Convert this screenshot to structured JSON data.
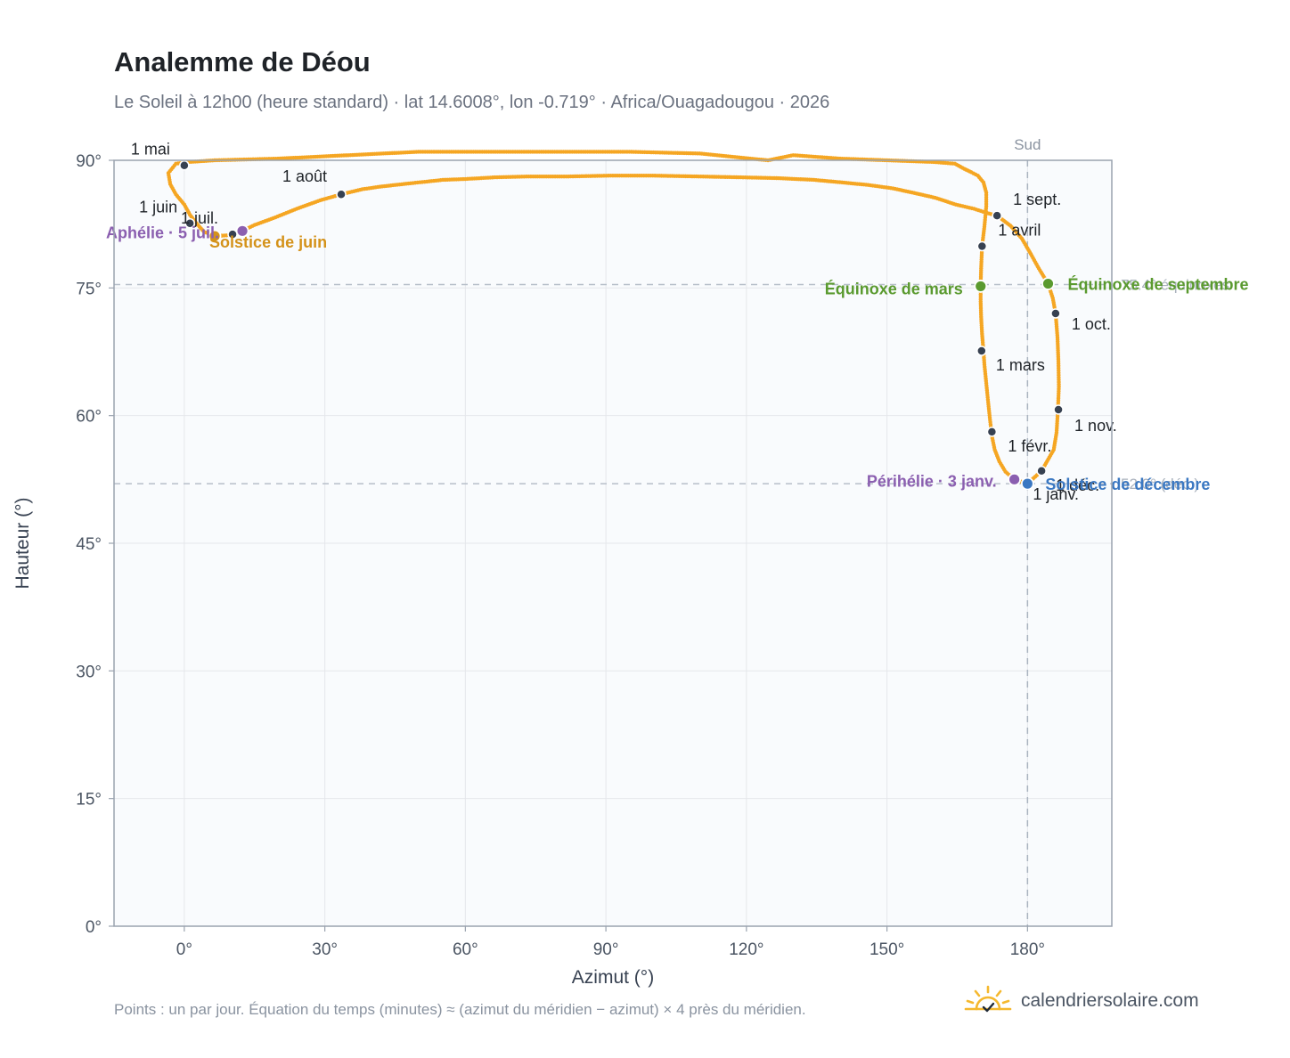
{
  "title": "Analemme de Déou",
  "subtitle": "Le Soleil à 12h00 (heure standard) · lat 14.6008°, lon -0.719° · Africa/Ouagadougou · 2026",
  "footnote": "Points : un par jour. Équation du temps (minutes) ≈ (azimut du méridien − azimut) × 4 près du méridien.",
  "brand": {
    "name": "calendriersolaire.com",
    "icon": "sun-check-icon"
  },
  "colors": {
    "curve": "#f5a623",
    "month_marker": "#374151",
    "solstice_june": "#d4921a",
    "solstice_december": "#3b78c2",
    "equinox": "#5a9a2f",
    "apsis": "#8b5fb0",
    "grid": "#e5e7eb",
    "frame": "#9aa3af",
    "plot_bg": "#f9fbfd"
  },
  "chart_data": {
    "type": "scatter",
    "xlabel": "Azimut (°)",
    "ylabel": "Hauteur (°)",
    "xlim": [
      -15,
      198
    ],
    "ylim": [
      0,
      90
    ],
    "x_ticks": [
      0,
      30,
      60,
      90,
      120,
      150,
      180
    ],
    "y_ticks": [
      0,
      15,
      30,
      45,
      60,
      75,
      90
    ],
    "x_tick_labels": [
      "0°",
      "30°",
      "60°",
      "90°",
      "120°",
      "150°",
      "180°"
    ],
    "y_tick_labels": [
      "0°",
      "15°",
      "30°",
      "45°",
      "60°",
      "75°",
      "90°"
    ],
    "grid": true,
    "south_line": {
      "x": 180,
      "label": "Sud"
    },
    "reference_lines_y": [
      75.4,
      52.0
    ],
    "reference_line_labels": [
      "75.4° équinoxes",
      "52.0° (déc.)"
    ],
    "series": [
      {
        "points": [
          [
            180.0,
            52.0
          ],
          [
            177.2,
            52.5
          ],
          [
            175.3,
            53.4
          ],
          [
            174.0,
            54.6
          ],
          [
            173.0,
            56.0
          ],
          [
            172.4,
            57.6
          ],
          [
            172.0,
            59.5
          ],
          [
            171.6,
            61.6
          ],
          [
            171.2,
            63.8
          ],
          [
            170.8,
            66.0
          ],
          [
            170.6,
            67.6
          ],
          [
            170.3,
            69.6
          ],
          [
            170.1,
            71.6
          ],
          [
            170.0,
            73.4
          ],
          [
            170.0,
            75.3
          ],
          [
            170.1,
            77.3
          ],
          [
            170.3,
            79.9
          ],
          [
            170.8,
            82.2
          ],
          [
            171.2,
            84.6
          ],
          [
            171.2,
            86.2
          ],
          [
            170.6,
            87.4
          ],
          [
            169.4,
            88.2
          ],
          [
            168.0,
            88.6
          ],
          [
            166.5,
            89.0
          ],
          [
            164.5,
            89.6
          ],
          [
            160.0,
            89.8
          ],
          [
            150.0,
            90.0
          ],
          [
            140.0,
            90.2
          ],
          [
            130.0,
            90.6
          ],
          [
            124.6,
            90.0
          ],
          [
            110.0,
            90.8
          ],
          [
            95.0,
            91.0
          ],
          [
            80.0,
            91.0
          ],
          [
            65.0,
            91.0
          ],
          [
            50.0,
            91.0
          ],
          [
            35.0,
            90.6
          ],
          [
            20.0,
            90.2
          ],
          [
            6.5,
            90.0
          ],
          [
            1.0,
            89.8
          ],
          [
            -1.8,
            89.6
          ],
          [
            -3.4,
            88.5
          ],
          [
            -3.0,
            87.2
          ],
          [
            -1.8,
            86.0
          ],
          [
            0.0,
            84.8
          ],
          [
            1.2,
            83.6
          ],
          [
            2.6,
            82.6
          ],
          [
            4.2,
            81.6
          ],
          [
            6.5,
            81.1
          ],
          [
            10.0,
            81.2
          ],
          [
            12.4,
            81.7
          ],
          [
            15.0,
            82.4
          ],
          [
            19.0,
            83.2
          ],
          [
            24.0,
            84.3
          ],
          [
            29.0,
            85.3
          ],
          [
            33.5,
            86.0
          ],
          [
            38.0,
            86.6
          ],
          [
            41.8,
            86.9
          ],
          [
            45.0,
            87.1
          ],
          [
            48.3,
            87.3
          ],
          [
            51.8,
            87.5
          ],
          [
            55.2,
            87.7
          ],
          [
            60.0,
            87.8
          ],
          [
            66.3,
            88.0
          ],
          [
            73.5,
            88.1
          ],
          [
            82.0,
            88.1
          ],
          [
            91.0,
            88.2
          ],
          [
            100.0,
            88.2
          ],
          [
            109.8,
            88.1
          ],
          [
            118.8,
            88.0
          ],
          [
            126.9,
            87.9
          ],
          [
            134.4,
            87.7
          ],
          [
            140.4,
            87.4
          ],
          [
            146.0,
            87.1
          ],
          [
            151.3,
            86.7
          ],
          [
            156.3,
            86.1
          ],
          [
            160.3,
            85.6
          ],
          [
            164.7,
            84.8
          ],
          [
            168.6,
            84.3
          ],
          [
            171.4,
            83.8
          ],
          [
            173.5,
            83.5
          ],
          [
            176.4,
            82.3
          ],
          [
            178.8,
            80.8
          ],
          [
            180.7,
            79.0
          ],
          [
            182.4,
            77.3
          ],
          [
            184.4,
            75.5
          ],
          [
            185.4,
            73.8
          ],
          [
            186.0,
            72.0
          ],
          [
            186.4,
            69.2
          ],
          [
            186.6,
            66.4
          ],
          [
            186.7,
            63.4
          ],
          [
            186.5,
            60.7
          ],
          [
            186.2,
            58.0
          ],
          [
            185.6,
            56.0
          ],
          [
            183.0,
            53.5
          ],
          [
            180.0,
            52.0
          ]
        ]
      }
    ],
    "month_markers": [
      {
        "label": "1 janv.",
        "x": 180.0,
        "y": 52.0
      },
      {
        "label": "1 févr.",
        "x": 172.4,
        "y": 58.1
      },
      {
        "label": "1 mars",
        "x": 170.2,
        "y": 67.6
      },
      {
        "label": "1 avril",
        "x": 170.3,
        "y": 79.9
      },
      {
        "label": "1 mai",
        "x": 0.0,
        "y": 89.4
      },
      {
        "label": "1 juin",
        "x": 1.2,
        "y": 82.6
      },
      {
        "label": "1 juil.",
        "x": 10.3,
        "y": 81.3
      },
      {
        "label": "1 août",
        "x": 33.5,
        "y": 86.0
      },
      {
        "label": "1 sept.",
        "x": 173.5,
        "y": 83.5
      },
      {
        "label": "1 oct.",
        "x": 186.0,
        "y": 72.0
      },
      {
        "label": "1 nov.",
        "x": 186.6,
        "y": 60.7
      },
      {
        "label": "1 déc.",
        "x": 183.0,
        "y": 53.5
      }
    ],
    "events": [
      {
        "label": "Solstice de juin",
        "x": 6.5,
        "y": 81.1,
        "kind": "solstice_june"
      },
      {
        "label": "Solstice de décembre",
        "x": 180.0,
        "y": 52.0,
        "kind": "solstice_december"
      },
      {
        "label": "Équinoxe de mars",
        "x": 170.0,
        "y": 75.2,
        "kind": "equinox"
      },
      {
        "label": "Équinoxe de septembre",
        "x": 184.4,
        "y": 75.5,
        "kind": "equinox"
      },
      {
        "label": "Aphélie · 5 juil.",
        "x": 12.4,
        "y": 81.7,
        "kind": "apsis"
      },
      {
        "label": "Périhélie · 3 janv.",
        "x": 177.2,
        "y": 52.5,
        "kind": "apsis"
      }
    ]
  }
}
